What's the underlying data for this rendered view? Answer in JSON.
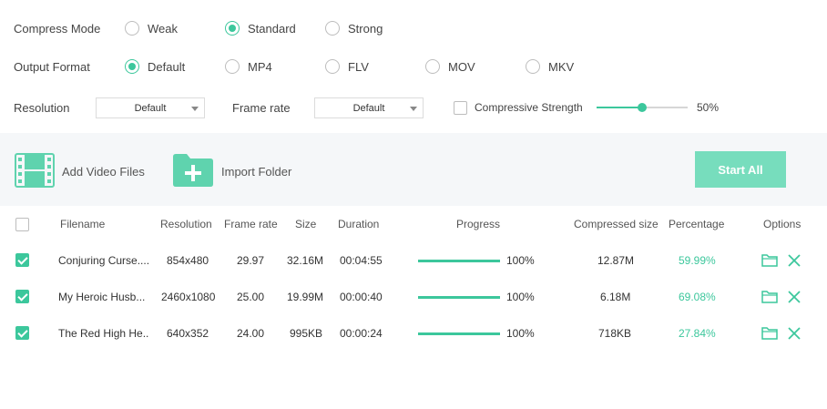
{
  "compress_mode": {
    "label": "Compress Mode",
    "options": [
      "Weak",
      "Standard",
      "Strong"
    ],
    "selected": "Standard"
  },
  "output_format": {
    "label": "Output Format",
    "options": [
      "Default",
      "MP4",
      "FLV",
      "MOV",
      "MKV"
    ],
    "selected": "Default"
  },
  "resolution": {
    "label": "Resolution",
    "value": "Default"
  },
  "frame_rate": {
    "label": "Frame rate",
    "value": "Default"
  },
  "compressive_strength": {
    "label": "Compressive Strength",
    "checked": false,
    "value": 50,
    "value_label": "50%"
  },
  "toolbar": {
    "add_files_label": "Add Video Files",
    "import_folder_label": "Import Folder",
    "start_all_label": "Start All"
  },
  "table": {
    "headers": {
      "filename": "Filename",
      "resolution": "Resolution",
      "frame_rate": "Frame rate",
      "size": "Size",
      "duration": "Duration",
      "progress": "Progress",
      "compressed_size": "Compressed size",
      "percentage": "Percentage",
      "options": "Options"
    },
    "rows": [
      {
        "filename": "Conjuring Curse....",
        "resolution": "854x480",
        "frame_rate": "29.97",
        "size": "32.16M",
        "duration": "00:04:55",
        "progress": 100,
        "progress_label": "100%",
        "compressed_size": "12.87M",
        "percentage": "59.99%",
        "checked": true
      },
      {
        "filename": "My Heroic Husb...",
        "resolution": "2460x1080",
        "frame_rate": "25.00",
        "size": "19.99M",
        "duration": "00:00:40",
        "progress": 100,
        "progress_label": "100%",
        "compressed_size": "6.18M",
        "percentage": "69.08%",
        "checked": true
      },
      {
        "filename": "The Red High He...",
        "resolution": "640x352",
        "frame_rate": "24.00",
        "size": "995KB",
        "duration": "00:00:24",
        "progress": 100,
        "progress_label": "100%",
        "compressed_size": "718KB",
        "percentage": "27.84%",
        "checked": true
      }
    ]
  },
  "colors": {
    "accent": "#3cc79c",
    "button": "#77ddbd",
    "toolbar_bg": "#f5f7f9"
  },
  "icons": [
    "film-icon",
    "folder-plus-icon",
    "folder-icon",
    "close-icon",
    "chevron-down-icon"
  ]
}
